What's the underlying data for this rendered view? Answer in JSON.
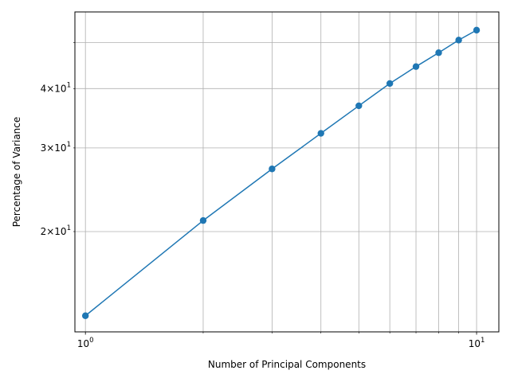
{
  "chart_data": {
    "type": "line",
    "xlabel": "Number of Principal Components",
    "ylabel": "Percentage of Variance",
    "x_scale": "log",
    "y_scale": "log",
    "xlim": [
      0.94,
      11.4
    ],
    "ylim": [
      12.3,
      58.0
    ],
    "grid": true,
    "color": "#1f77b4",
    "x_ticks": [
      {
        "value": 1,
        "base": "10",
        "exp": "0"
      },
      {
        "value": 10,
        "base": "10",
        "exp": "1"
      }
    ],
    "y_ticks": [
      {
        "value": 20,
        "mant": "2",
        "base": "10",
        "exp": "1"
      },
      {
        "value": 30,
        "mant": "3",
        "base": "10",
        "exp": "1"
      },
      {
        "value": 40,
        "mant": "4",
        "base": "10",
        "exp": "1"
      }
    ],
    "x_minor_grid": [
      2,
      3,
      4,
      5,
      6,
      7,
      8,
      9
    ],
    "y_minor_grid": [
      50
    ],
    "x": [
      1,
      2,
      3,
      4,
      5,
      6,
      7,
      8,
      9,
      10
    ],
    "y": [
      13.3,
      21.1,
      27.1,
      32.2,
      36.8,
      41.0,
      44.5,
      47.6,
      50.6,
      53.1
    ]
  }
}
